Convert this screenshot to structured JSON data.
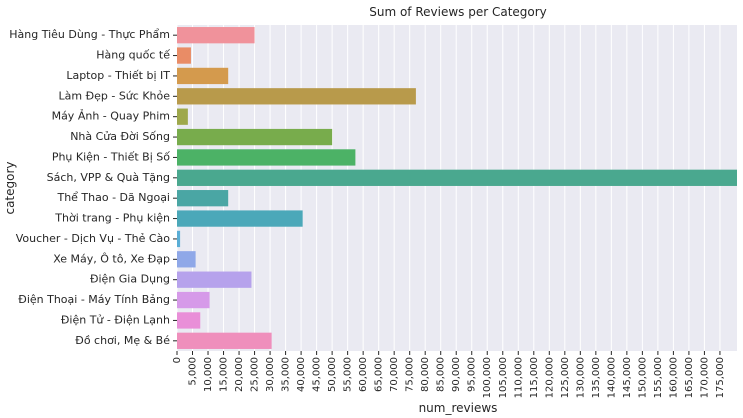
{
  "chart_data": {
    "type": "bar",
    "orientation": "horizontal",
    "title": "Sum of Reviews per Category",
    "xlabel": "num_reviews",
    "ylabel": "category",
    "xlim": [
      0,
      180500
    ],
    "x_ticks": [
      0,
      5000,
      10000,
      15000,
      20000,
      25000,
      30000,
      35000,
      40000,
      45000,
      50000,
      55000,
      60000,
      65000,
      70000,
      75000,
      80000,
      85000,
      90000,
      95000,
      100000,
      105000,
      110000,
      115000,
      120000,
      125000,
      130000,
      135000,
      140000,
      145000,
      150000,
      155000,
      160000,
      165000,
      170000,
      175000
    ],
    "x_tick_labels": [
      "0",
      "5,000",
      "10,000",
      "15,000",
      "20,000",
      "25,000",
      "30,000",
      "35,000",
      "40,000",
      "45,000",
      "50,000",
      "55,000",
      "60,000",
      "65,000",
      "70,000",
      "75,000",
      "80,000",
      "85,000",
      "90,000",
      "95,000",
      "100,000",
      "105,000",
      "110,000",
      "115,000",
      "120,000",
      "125,000",
      "130,000",
      "135,000",
      "140,000",
      "145,000",
      "150,000",
      "155,000",
      "160,000",
      "165,000",
      "170,000",
      "175,000"
    ],
    "x_tick_rotation": 90,
    "grid": true,
    "background": "#eaeaf2",
    "categories": [
      "Hàng Tiêu Dùng - Thực Phẩm",
      "Hàng quốc tế",
      "Laptop - Thiết bị IT",
      "Làm Đẹp - Sức Khỏe",
      "Máy Ảnh - Quay Phim",
      "Nhà Cửa Đời Sống",
      "Phụ Kiện - Thiết Bị Số",
      "Sách, VPP & Quà Tặng",
      "Thể Thao - Dã Ngoại",
      "Thời trang - Phụ kiện",
      "Voucher - Dịch Vụ - Thẻ Cào",
      "Xe Máy, Ô tô, Xe Đạp",
      "Điện Gia Dụng",
      "Điện Thoại - Máy Tính Bảng",
      "Điện Tử - Điện Lạnh",
      "Đồ chơi, Mẹ & Bé"
    ],
    "values": [
      25000,
      4500,
      16500,
      77000,
      3500,
      50000,
      57500,
      180500,
      16500,
      40500,
      1000,
      6000,
      24000,
      10500,
      7500,
      30500
    ],
    "colors": [
      "#f0929b",
      "#e98c66",
      "#d49a4d",
      "#b89a4b",
      "#9ea84b",
      "#78ac4c",
      "#4cb266",
      "#4aa88f",
      "#4aa6a4",
      "#4ba8b9",
      "#5aaed6",
      "#8fa8e8",
      "#b6a2ec",
      "#d69ae9",
      "#e98fd8",
      "#ef8fbc"
    ]
  }
}
